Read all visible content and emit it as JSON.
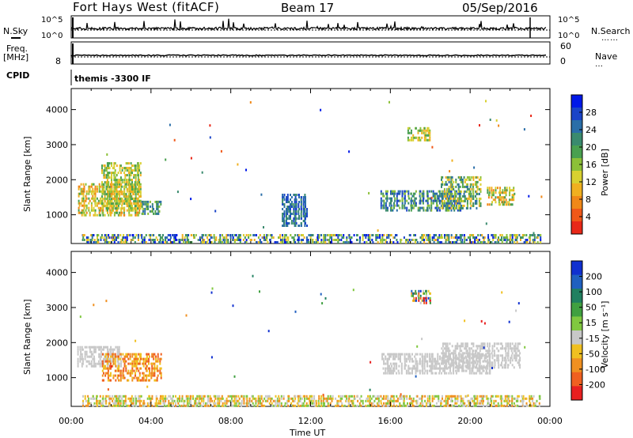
{
  "header": {
    "station": "Fort Hays West (fitACF)",
    "beam": "Beam 17",
    "date": "05/Sep/2016"
  },
  "strips": {
    "nsky_label": "N.Sky",
    "nsky_ticks": [
      "10^5",
      "10^0"
    ],
    "nsearch_label": "N.Search",
    "nsearch_ticks": [
      "10^5",
      "10^0"
    ],
    "freq_label_1": "Freq.",
    "freq_label_2": "[MHz]",
    "freq_ticks": [
      "8"
    ],
    "nave_label": "Nave",
    "nave_ticks": [
      "60",
      "0"
    ],
    "cpid_label": "CPID",
    "cpid_value": "themis -3300 IF"
  },
  "chart_data": [
    {
      "type": "heatmap",
      "name": "power",
      "ylabel": "Slant Range [km]",
      "xlabel": "",
      "y_ticks": [
        1000,
        2000,
        3000,
        4000
      ],
      "ylim": [
        180,
        4600
      ],
      "colorbar_label": "Power [dB]",
      "colorbar_ticks": [
        "28",
        "24",
        "20",
        "16",
        "12",
        "8",
        "4"
      ],
      "colors": [
        "#0018e8",
        "#1a44c8",
        "#2a6ea8",
        "#3a8a6e",
        "#4aa050",
        "#8cc038",
        "#d8d030",
        "#f0b020",
        "#f08818",
        "#f05818",
        "#e82818"
      ],
      "regions": [
        {
          "t0": 0.3,
          "t1": 3.5,
          "r0": 1000,
          "r1": 1900,
          "level_min": 4,
          "level_max": 8
        },
        {
          "t0": 1.5,
          "t1": 3.5,
          "r0": 1150,
          "r1": 2500,
          "level_min": 4,
          "level_max": 7
        },
        {
          "t0": 3.5,
          "t1": 4.5,
          "r0": 1000,
          "r1": 1400,
          "level_min": 2,
          "level_max": 5
        },
        {
          "t0": 10.5,
          "t1": 11.8,
          "r0": 700,
          "r1": 1600,
          "level_min": 1,
          "level_max": 3
        },
        {
          "t0": 15.5,
          "t1": 19.5,
          "r0": 1100,
          "r1": 1700,
          "level_min": 1,
          "level_max": 5
        },
        {
          "t0": 16.8,
          "t1": 18.0,
          "r0": 3100,
          "r1": 3500,
          "level_min": 4,
          "level_max": 7
        },
        {
          "t0": 18.5,
          "t1": 20.5,
          "r0": 1200,
          "r1": 2100,
          "level_min": 2,
          "level_max": 7
        },
        {
          "t0": 20.8,
          "t1": 22.2,
          "r0": 1300,
          "r1": 1800,
          "level_min": 4,
          "level_max": 8
        },
        {
          "t0": 0.5,
          "t1": 23.5,
          "r0": 200,
          "r1": 450,
          "level_min": 0,
          "level_max": 7
        }
      ]
    },
    {
      "type": "heatmap",
      "name": "velocity",
      "ylabel": "Slant Range [km]",
      "xlabel": "Time UT",
      "x_ticks": [
        "00:00",
        "04:00",
        "08:00",
        "12:00",
        "16:00",
        "20:00",
        "00:00"
      ],
      "y_ticks": [
        1000,
        2000,
        3000,
        4000
      ],
      "ylim": [
        180,
        4600
      ],
      "colorbar_label": "Velocity [m s⁻¹]",
      "colorbar_ticks": [
        "200",
        "100",
        "50",
        "15",
        "-15",
        "-50",
        "-100",
        "-200"
      ],
      "colors": [
        "#1030d0",
        "#2060c0",
        "#208060",
        "#40a040",
        "#80c840",
        "#c8c8c8",
        "#f0c020",
        "#f09020",
        "#f06020",
        "#e82020"
      ],
      "regions": [
        {
          "t0": 0.3,
          "t1": 2.5,
          "r0": 1300,
          "r1": 1900,
          "level_min": 5,
          "level_max": 5
        },
        {
          "t0": 1.5,
          "t1": 4.5,
          "r0": 900,
          "r1": 1700,
          "level_min": 6,
          "level_max": 8
        },
        {
          "t0": 15.5,
          "t1": 21.0,
          "r0": 1100,
          "r1": 1700,
          "level_min": 5,
          "level_max": 5
        },
        {
          "t0": 18.5,
          "t1": 22.5,
          "r0": 1300,
          "r1": 2000,
          "level_min": 5,
          "level_max": 5
        },
        {
          "t0": 17.0,
          "t1": 18.0,
          "r0": 3100,
          "r1": 3500,
          "level_min": 0,
          "level_max": 9
        },
        {
          "t0": 0.5,
          "t1": 23.5,
          "r0": 200,
          "r1": 500,
          "level_min": 4,
          "level_max": 7
        }
      ]
    }
  ]
}
